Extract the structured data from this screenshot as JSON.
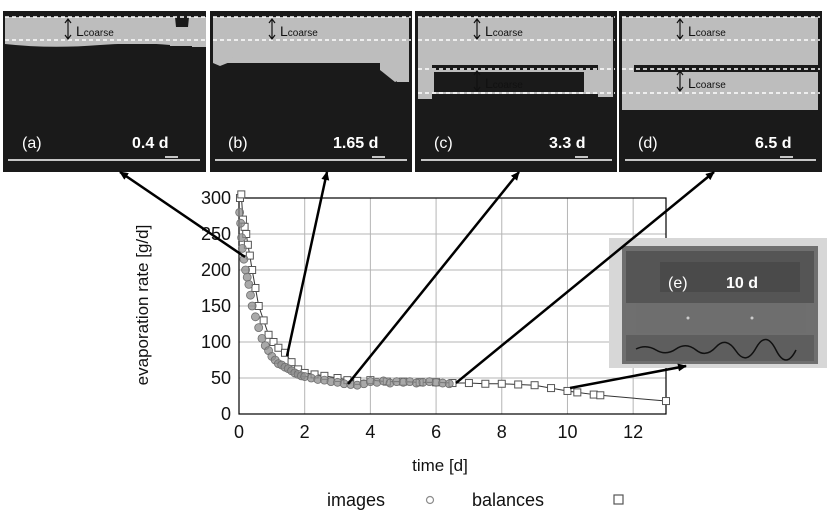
{
  "panels": [
    {
      "label": "(a)",
      "time": "0.4 d"
    },
    {
      "label": "(b)",
      "time": "1.65 d"
    },
    {
      "label": "(c)",
      "time": "3.3 d"
    },
    {
      "label": "(d)",
      "time": "6.5 d"
    }
  ],
  "lcoarse_main": "L",
  "lcoarse_sub": "coarse",
  "inset": {
    "label": "(e)",
    "time": "10 d"
  },
  "chart_data": {
    "type": "scatter",
    "xlabel": "time [d]",
    "ylabel": "evaporation rate [g/d]",
    "xlim": [
      0,
      13
    ],
    "ylim": [
      0,
      300
    ],
    "xticks": [
      0,
      2,
      4,
      6,
      8,
      10,
      12
    ],
    "yticks": [
      0,
      50,
      100,
      150,
      200,
      250,
      300
    ],
    "grid": true,
    "legend_position": "bottom",
    "series": [
      {
        "name": "images",
        "marker": "circle",
        "color": "#8c8c8c",
        "x": [
          0.02,
          0.05,
          0.08,
          0.1,
          0.15,
          0.2,
          0.25,
          0.3,
          0.35,
          0.4,
          0.5,
          0.6,
          0.7,
          0.8,
          0.9,
          1.0,
          1.1,
          1.2,
          1.3,
          1.4,
          1.5,
          1.6,
          1.7,
          1.8,
          1.9,
          2.0,
          2.2,
          2.4,
          2.6,
          2.8,
          3.0,
          3.2,
          3.4,
          3.6,
          3.8,
          4.0,
          4.2,
          4.4,
          4.6,
          4.8,
          5.0,
          5.2,
          5.4,
          5.6,
          5.8,
          6.0,
          6.2,
          6.4
        ],
        "y": [
          280,
          265,
          245,
          230,
          215,
          200,
          190,
          180,
          165,
          150,
          135,
          120,
          105,
          95,
          88,
          80,
          75,
          70,
          68,
          65,
          63,
          60,
          57,
          55,
          53,
          52,
          50,
          48,
          47,
          45,
          44,
          42,
          41,
          40,
          42,
          45,
          44,
          46,
          43,
          45,
          44,
          45,
          43,
          44,
          45,
          44,
          43,
          42
        ]
      },
      {
        "name": "balances",
        "marker": "square",
        "color": "#555555",
        "x": [
          0.03,
          0.07,
          0.12,
          0.17,
          0.22,
          0.27,
          0.33,
          0.4,
          0.5,
          0.6,
          0.75,
          0.9,
          1.05,
          1.2,
          1.4,
          1.6,
          1.8,
          2.0,
          2.3,
          2.6,
          3.0,
          3.3,
          3.6,
          4.0,
          4.5,
          5.0,
          5.5,
          6.0,
          6.5,
          7.0,
          7.5,
          8.0,
          8.5,
          9.0,
          9.5,
          10.0,
          10.3,
          10.8,
          11.0,
          13.0
        ],
        "y": [
          300,
          305,
          270,
          260,
          250,
          235,
          220,
          200,
          175,
          150,
          130,
          110,
          100,
          92,
          85,
          72,
          62,
          57,
          55,
          53,
          50,
          47,
          46,
          47,
          45,
          45,
          44,
          44,
          43,
          43,
          42,
          42,
          41,
          40,
          36,
          32,
          30,
          27,
          26,
          18
        ]
      }
    ]
  }
}
